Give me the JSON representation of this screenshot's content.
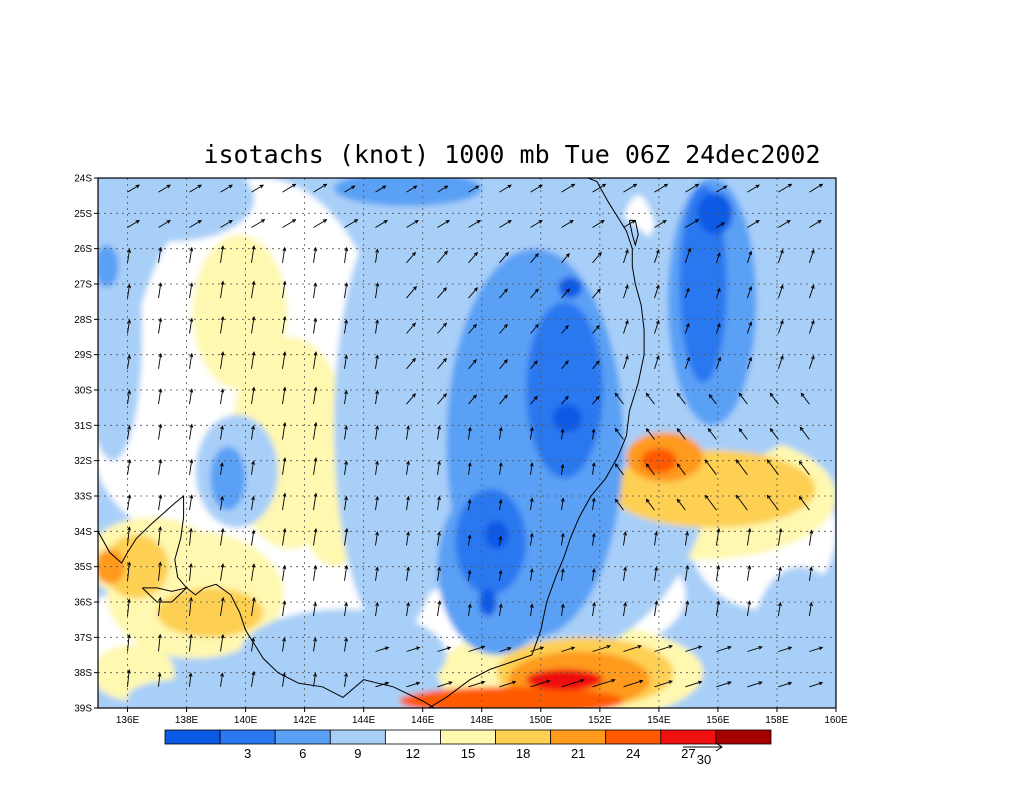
{
  "title": "isotachs (knot) 1000 mb Tue 06Z 24dec2002",
  "chart_data": {
    "type": "heatmap",
    "title": "isotachs (knot) 1000 mb Tue 06Z 24dec2002",
    "x_ticks": [
      "136E",
      "138E",
      "140E",
      "142E",
      "144E",
      "146E",
      "148E",
      "150E",
      "152E",
      "154E",
      "156E",
      "158E",
      "160E"
    ],
    "y_ticks": [
      "24S",
      "25S",
      "26S",
      "27S",
      "28S",
      "29S",
      "30S",
      "31S",
      "32S",
      "33S",
      "34S",
      "35S",
      "36S",
      "37S",
      "38S",
      "39S"
    ],
    "xlim": [
      135,
      160
    ],
    "ylim": [
      -39,
      -24
    ],
    "grid": true,
    "colorbar": {
      "labels": [
        "3",
        "6",
        "9",
        "12",
        "15",
        "18",
        "21",
        "24",
        "27"
      ],
      "colors": [
        "#0a5ae6",
        "#2a78f0",
        "#5aa0f5",
        "#a8cff8",
        "#ffffff",
        "#fff8b0",
        "#fdd052",
        "#ff9a1a",
        "#ff5a00",
        "#f01010",
        "#a50000"
      ]
    },
    "reference_vector": "30",
    "fields": [
      {
        "level": 1,
        "lon": 138.3,
        "lat": -35.8,
        "rx": 3.0,
        "ry": 1.8
      },
      {
        "level": 1,
        "lon": 136.8,
        "lat": -34.8,
        "rx": 2.2,
        "ry": 1.2
      },
      {
        "level": 2,
        "lon": 136.3,
        "lat": -35.0,
        "rx": 1.1,
        "ry": 0.9
      },
      {
        "level": 2,
        "lon": 138.8,
        "lat": -36.3,
        "rx": 1.8,
        "ry": 0.7
      },
      {
        "level": 3,
        "lon": 135.4,
        "lat": -35.0,
        "rx": 0.5,
        "ry": 0.5
      },
      {
        "level": 1,
        "lon": 139.8,
        "lat": -27.8,
        "rx": 1.6,
        "ry": 2.2
      },
      {
        "level": 1,
        "lon": 141.5,
        "lat": -31.5,
        "rx": 2.0,
        "ry": 3.0
      },
      {
        "level": 1,
        "lon": 143.0,
        "lat": -33.0,
        "rx": 1.2,
        "ry": 2.0
      },
      {
        "level": 1,
        "lon": 155.5,
        "lat": -33.0,
        "rx": 4.5,
        "ry": 1.8
      },
      {
        "level": 2,
        "lon": 155.8,
        "lat": -32.8,
        "rx": 3.5,
        "ry": 1.1
      },
      {
        "level": 3,
        "lon": 154.2,
        "lat": -31.9,
        "rx": 1.3,
        "ry": 0.7
      },
      {
        "level": 4,
        "lon": 154.0,
        "lat": -32.0,
        "rx": 0.6,
        "ry": 0.35
      },
      {
        "level": 1,
        "lon": 151.0,
        "lat": -38.0,
        "rx": 4.5,
        "ry": 1.4
      },
      {
        "level": 2,
        "lon": 151.5,
        "lat": -38.0,
        "rx": 3.0,
        "ry": 1.0
      },
      {
        "level": 3,
        "lon": 151.3,
        "lat": -38.2,
        "rx": 2.4,
        "ry": 0.8
      },
      {
        "level": 4,
        "lon": 149.0,
        "lat": -38.8,
        "rx": 3.8,
        "ry": 0.4
      },
      {
        "level": 5,
        "lon": 150.8,
        "lat": -38.2,
        "rx": 1.3,
        "ry": 0.3
      },
      {
        "level": 1,
        "lon": 136.2,
        "lat": -38.0,
        "rx": 1.4,
        "ry": 0.8
      },
      {
        "level": -1,
        "lon": 145.0,
        "lat": -31.0,
        "rx": 2.0,
        "ry": 6.0
      },
      {
        "level": -1,
        "lon": 150.5,
        "lat": -31.0,
        "rx": 5.5,
        "ry": 6.5
      },
      {
        "level": -1,
        "lon": 156.5,
        "lat": -28.0,
        "rx": 3.5,
        "ry": 4.0
      },
      {
        "level": -1,
        "lon": 137.5,
        "lat": -24.6,
        "rx": 2.8,
        "ry": 1.2
      },
      {
        "level": -1,
        "lon": 135.5,
        "lat": -28.5,
        "rx": 1.0,
        "ry": 3.5
      },
      {
        "level": -1,
        "lon": 139.7,
        "lat": -32.3,
        "rx": 1.4,
        "ry": 1.6
      },
      {
        "level": -1,
        "lon": 143.3,
        "lat": -37.5,
        "rx": 3.5,
        "ry": 1.3
      },
      {
        "level": -1,
        "lon": 137.8,
        "lat": -38.7,
        "rx": 1.8,
        "ry": 0.5
      },
      {
        "level": -1,
        "lon": 158.8,
        "lat": -37.0,
        "rx": 1.6,
        "ry": 2.0
      },
      {
        "level": -1,
        "lon": 147.0,
        "lat": -24.7,
        "rx": 3.5,
        "ry": 1.0
      },
      {
        "level": -2,
        "lon": 149.8,
        "lat": -31.5,
        "rx": 3.0,
        "ry": 5.5
      },
      {
        "level": -2,
        "lon": 148.5,
        "lat": -35.0,
        "rx": 2.0,
        "ry": 2.5
      },
      {
        "level": -2,
        "lon": 155.8,
        "lat": -27.5,
        "rx": 1.5,
        "ry": 3.5
      },
      {
        "level": -2,
        "lon": 145.5,
        "lat": -24.3,
        "rx": 2.5,
        "ry": 0.5
      },
      {
        "level": -2,
        "lon": 139.4,
        "lat": -32.5,
        "rx": 0.6,
        "ry": 0.9
      },
      {
        "level": -2,
        "lon": 135.3,
        "lat": -26.5,
        "rx": 0.4,
        "ry": 0.6
      },
      {
        "level": -3,
        "lon": 150.8,
        "lat": -30.0,
        "rx": 1.3,
        "ry": 2.5
      },
      {
        "level": -3,
        "lon": 148.3,
        "lat": -34.3,
        "rx": 1.2,
        "ry": 1.5
      },
      {
        "level": -3,
        "lon": 155.5,
        "lat": -27.0,
        "rx": 0.8,
        "ry": 2.8
      },
      {
        "level": -4,
        "lon": 150.9,
        "lat": -30.8,
        "rx": 0.5,
        "ry": 0.4
      },
      {
        "level": -4,
        "lon": 148.5,
        "lat": -34.1,
        "rx": 0.4,
        "ry": 0.4
      },
      {
        "level": -4,
        "lon": 151.0,
        "lat": -27.1,
        "rx": 0.4,
        "ry": 0.3
      },
      {
        "level": -4,
        "lon": 148.2,
        "lat": -36.0,
        "rx": 0.3,
        "ry": 0.4
      },
      {
        "level": -4,
        "lon": 155.9,
        "lat": -25.0,
        "rx": 0.6,
        "ry": 0.6
      },
      {
        "level": 0,
        "lon": 155.2,
        "lat": -25.7,
        "rx": 0.5,
        "ry": 1.1
      },
      {
        "level": 0,
        "lon": 144.5,
        "lat": -27.3,
        "rx": 1.2,
        "ry": 0.6
      }
    ],
    "coastline": [
      [
        [
          135.0,
          -34.0
        ],
        [
          135.4,
          -34.6
        ],
        [
          135.8,
          -34.9
        ],
        [
          136.0,
          -34.6
        ],
        [
          136.3,
          -34.2
        ],
        [
          136.8,
          -33.8
        ],
        [
          137.2,
          -33.5
        ],
        [
          137.6,
          -33.2
        ],
        [
          137.9,
          -33.0
        ],
        [
          137.9,
          -33.6
        ],
        [
          137.8,
          -34.2
        ],
        [
          137.6,
          -34.8
        ],
        [
          137.7,
          -35.3
        ],
        [
          138.0,
          -35.6
        ],
        [
          138.3,
          -35.8
        ],
        [
          138.6,
          -35.6
        ],
        [
          139.0,
          -35.5
        ],
        [
          139.5,
          -35.8
        ],
        [
          139.8,
          -36.3
        ],
        [
          140.0,
          -36.8
        ],
        [
          140.3,
          -37.2
        ],
        [
          140.6,
          -37.6
        ],
        [
          141.1,
          -38.0
        ],
        [
          141.8,
          -38.3
        ],
        [
          142.6,
          -38.4
        ],
        [
          143.3,
          -38.7
        ],
        [
          144.0,
          -38.2
        ],
        [
          144.5,
          -38.3
        ],
        [
          145.0,
          -38.4
        ],
        [
          145.5,
          -38.6
        ],
        [
          146.0,
          -38.8
        ],
        [
          146.4,
          -39.0
        ]
      ],
      [
        [
          146.2,
          -39.0
        ],
        [
          146.8,
          -38.7
        ],
        [
          147.6,
          -38.2
        ],
        [
          148.3,
          -37.9
        ],
        [
          149.0,
          -37.7
        ],
        [
          149.7,
          -37.5
        ],
        [
          150.0,
          -36.8
        ],
        [
          150.2,
          -36.0
        ],
        [
          150.5,
          -35.3
        ],
        [
          150.8,
          -34.7
        ],
        [
          151.0,
          -34.2
        ],
        [
          151.3,
          -33.6
        ],
        [
          151.7,
          -33.0
        ],
        [
          152.2,
          -32.5
        ],
        [
          152.6,
          -31.9
        ],
        [
          152.9,
          -31.3
        ],
        [
          153.0,
          -30.6
        ],
        [
          153.3,
          -29.8
        ],
        [
          153.5,
          -29.0
        ],
        [
          153.5,
          -28.3
        ],
        [
          153.4,
          -27.6
        ],
        [
          153.2,
          -27.0
        ],
        [
          153.1,
          -26.5
        ],
        [
          153.1,
          -26.0
        ],
        [
          152.9,
          -25.5
        ],
        [
          152.6,
          -25.1
        ],
        [
          152.3,
          -24.7
        ],
        [
          151.9,
          -24.1
        ],
        [
          151.6,
          -24.0
        ]
      ],
      [
        [
          153.0,
          -25.2
        ],
        [
          153.1,
          -25.6
        ],
        [
          153.2,
          -25.9
        ],
        [
          153.3,
          -25.6
        ],
        [
          153.2,
          -25.2
        ],
        [
          153.0,
          -25.2
        ]
      ],
      [
        [
          136.5,
          -35.6
        ],
        [
          137.0,
          -35.6
        ],
        [
          137.5,
          -35.7
        ],
        [
          138.0,
          -35.6
        ],
        [
          137.5,
          -36.0
        ],
        [
          137.0,
          -36.0
        ],
        [
          136.5,
          -35.6
        ]
      ]
    ]
  }
}
